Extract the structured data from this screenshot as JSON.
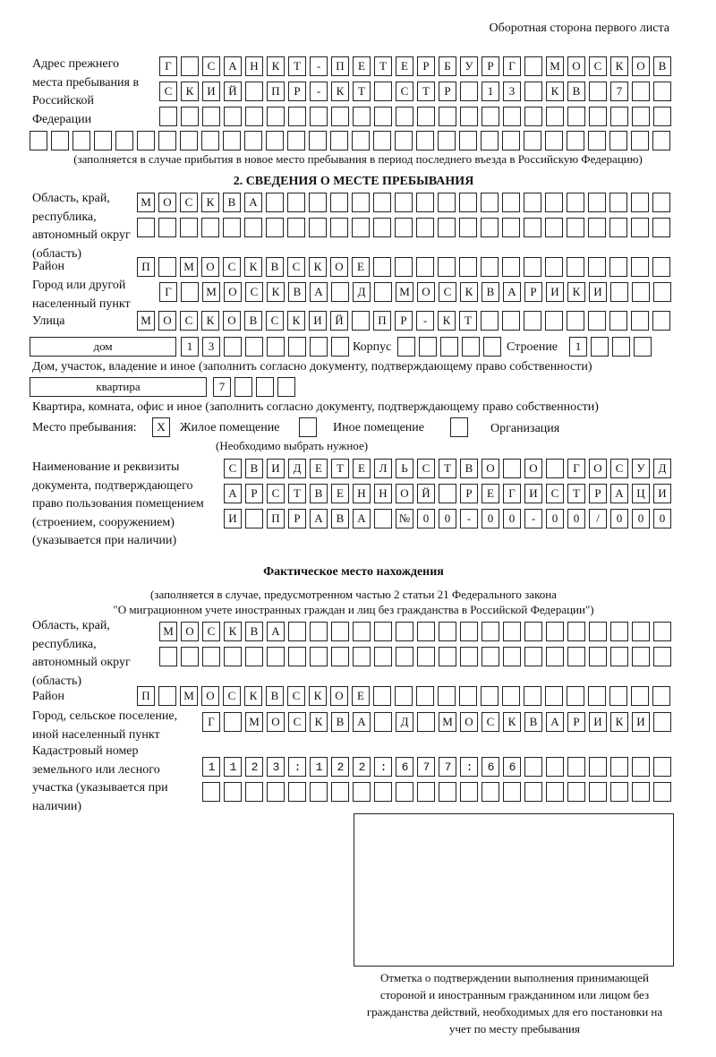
{
  "header": "Оборотная сторона первого листа",
  "prev_address": {
    "label": "Адрес прежнего места пребывания в Российской Федерации",
    "rows": [
      "Г САНКТ-ПЕТЕРБУРГ МОСКОВ",
      "СКИЙ ПР-КТ СТР 13 КВ 7",
      "",
      ""
    ],
    "note": "(заполняется в случае прибытия в новое место пребывания в период последнего въезда в Российскую Федерацию)"
  },
  "section2": {
    "title": "2. СВЕДЕНИЯ О МЕСТЕ ПРЕБЫВАНИЯ",
    "region_label": "Область, край, республика, автономный округ (область)",
    "region": [
      "МОСКВА",
      ""
    ],
    "district_label": "Район",
    "district": "П МОСКВСКОЕ",
    "city_label": "Город или другой населенный пункт",
    "city": "Г МОСКВА Д МОСКВАРИКИ",
    "street_label": "Улица",
    "street": "МОСКОВСКИЙ ПР-КТ",
    "house_type": "дом",
    "house": "13",
    "korpus_label": "Корпус",
    "korpus": "",
    "building_label": "Строение",
    "building": "1",
    "house_note": "Дом, участок, владение и иное (заполнить согласно документу, подтверждающему право собственности)",
    "flat_type": "квартира",
    "flat": "7",
    "flat_note": "Квартира, комната, офис и иное (заполнить согласно документу, подтверждающему право собственности)",
    "place_label": "Место пребывания:",
    "place_options": [
      {
        "label": "Жилое помещение",
        "mark": "X"
      },
      {
        "label": "Иное помещение",
        "mark": ""
      },
      {
        "label": "Организация",
        "mark": ""
      }
    ],
    "place_note": "(Необходимо выбрать нужное)",
    "doc_label": "Наименование и реквизиты документа, подтверждающего право пользования помещением (строением, сооружением) (указывается при наличии)",
    "doc": [
      "СВИДЕТЕЛЬСТВО О ГОСУД",
      "АРСТВЕННОЙ РЕГИСТРАЦИ",
      "И ПРАВА №00-00-00/000"
    ]
  },
  "actual": {
    "title": "Фактическое место нахождения",
    "note1": "(заполняется в случае, предусмотренном частью 2 статьи 21 Федерального закона",
    "note2": "\"О миграционном учете иностранных граждан и лиц без гражданства в Российской Федерации\")",
    "region_label": "Область, край, республика, автономный округ (область)",
    "region": [
      "МОСКВА",
      ""
    ],
    "district_label": "Район",
    "district": "П МОСКВСКОЕ",
    "city_label": "Город, сельское поселение, иной населенный пункт",
    "city": "Г МОСКВА Д МОСКВАРИКИ",
    "cadastre_label": "Кадастровый номер земельного или лесного участка (указывается при наличии)",
    "cadastre": [
      "1123:122:677:66",
      ""
    ]
  },
  "stamp_caption": "Отметка о подтверждении выполнения принимающей стороной и иностранным гражданином или лицом без гражданства действий, необходимых для его постановки на учет по месту пребывания"
}
